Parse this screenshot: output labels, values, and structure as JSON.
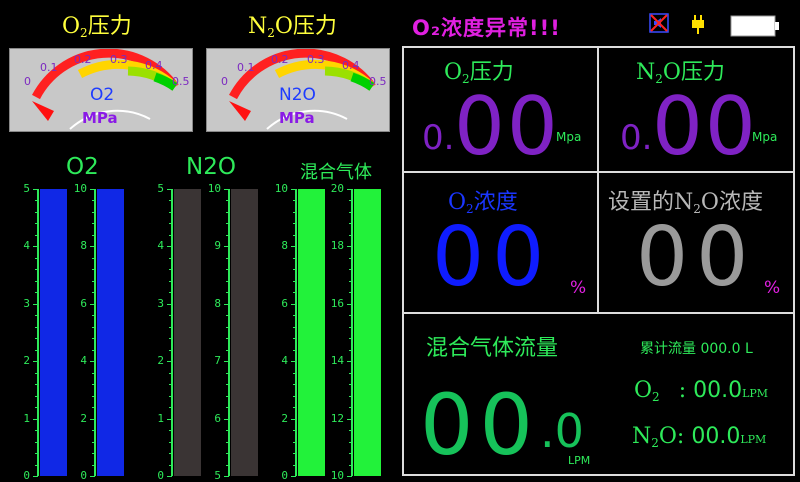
{
  "header": {
    "o2_pressure_label": "O",
    "o2_pressure_sub": "2",
    "o2_pressure_suffix": "压力",
    "n2o_pressure_label": "N",
    "n2o_pressure_sub": "2",
    "n2o_pressure_suffix": "O压力",
    "alarm_text": "O₂浓度异常!!!",
    "icon_mute": "mute-speaker-icon",
    "icon_power": "power-plug-icon",
    "icon_battery": "battery-icon"
  },
  "gauges": {
    "ticks": [
      "0",
      "0.1",
      "0.2",
      "0.3",
      "0.4",
      "0.5"
    ],
    "unit": "MPa",
    "o2_name": "O2",
    "n2o_name": "N2O",
    "o2_value": 0,
    "n2o_value": 0
  },
  "bars": {
    "o2_label": "O2",
    "n2o_label": "N2O",
    "mix_label": "混合气体",
    "o2_left_scale": [
      "5",
      "4",
      "3",
      "2",
      "1",
      "0"
    ],
    "o2_right_scale": [
      "10",
      "8",
      "6",
      "4",
      "2",
      "0"
    ],
    "n2o_left_scale": [
      "5",
      "4",
      "3",
      "2",
      "1",
      "0"
    ],
    "n2o_right_scale": [
      "10",
      "9",
      "8",
      "7",
      "6",
      "5"
    ],
    "mix_left_scale": [
      "10",
      "8",
      "6",
      "4",
      "2",
      "0"
    ],
    "mix_right_scale": [
      "20",
      "18",
      "16",
      "14",
      "12",
      "10"
    ],
    "o2_fill_fraction": 1.0,
    "n2o_fill_fraction": 1.0,
    "mix_fill_fraction": 1.0,
    "color_o2": "#1028e6",
    "color_n2o": "#3a3434",
    "color_mix": "#22f23a"
  },
  "panels": {
    "o2_pressure": {
      "title": "O",
      "sub": "2",
      "suffix": "压力",
      "small": "0.",
      "big": "00",
      "unit": "Mpa"
    },
    "n2o_pressure": {
      "title": "N",
      "sub": "2",
      "suffix": "O压力",
      "small": "0.",
      "big": "00",
      "unit": "Mpa"
    },
    "o2_conc": {
      "title": "O",
      "sub": "2",
      "suffix": "浓度",
      "big": "00",
      "unit": "%"
    },
    "n2o_set_conc": {
      "title_prefix": "设置的N",
      "sub": "2",
      "suffix": "O浓度",
      "big": "00",
      "unit": "%"
    },
    "mix_flow": {
      "title": "混合气体流量",
      "total_label": "累计流量",
      "total_value": "000.0",
      "total_unit": "L",
      "big": "00",
      "decimal": ".0",
      "unit": "LPM",
      "o2_label": "O",
      "o2_sub": "2",
      "o2_colon": ":",
      "o2_value": "00.0",
      "o2_unit": "LPM",
      "n2o_label": "N",
      "n2o_sub": "2",
      "n2o_suffix": "O:",
      "n2o_value": "00.0",
      "n2o_unit": "LPM"
    }
  }
}
